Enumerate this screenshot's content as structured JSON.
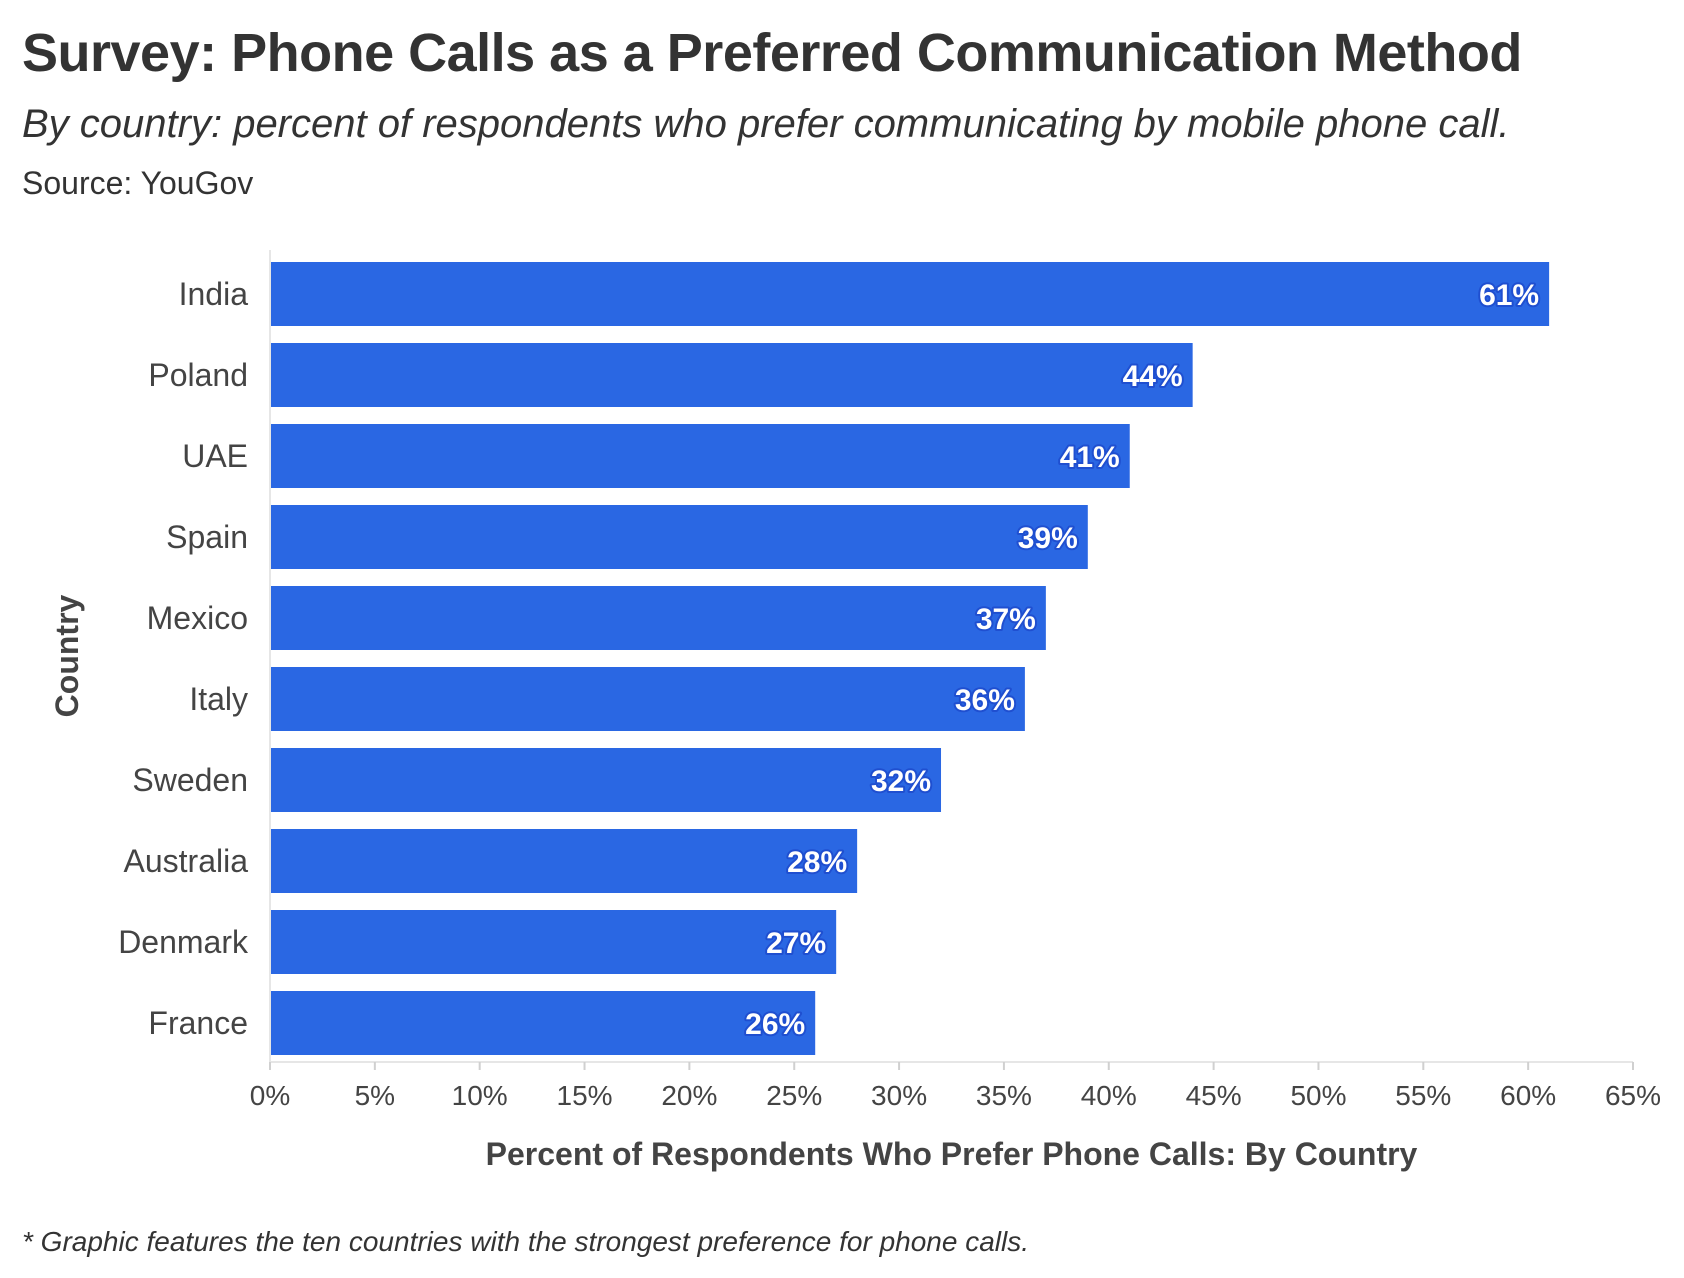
{
  "title": "Survey: Phone Calls as a Preferred Communication Method",
  "subtitle": "By country: percent of respondents who prefer communicating by mobile phone call.",
  "source": "Source: YouGov",
  "footnote": "* Graphic features the ten countries with the strongest preference for phone calls.",
  "chart_data": {
    "type": "bar",
    "orientation": "horizontal",
    "categories": [
      "India",
      "Poland",
      "UAE",
      "Spain",
      "Mexico",
      "Italy",
      "Sweden",
      "Australia",
      "Denmark",
      "France"
    ],
    "values": [
      61,
      44,
      41,
      39,
      37,
      36,
      32,
      28,
      27,
      26
    ],
    "value_labels": [
      "61%",
      "44%",
      "41%",
      "39%",
      "37%",
      "36%",
      "32%",
      "28%",
      "27%",
      "26%"
    ],
    "xlabel": "Percent of Respondents Who Prefer Phone Calls: By Country",
    "ylabel": "Country",
    "xlim": [
      0,
      65
    ],
    "xticks": [
      0,
      5,
      10,
      15,
      20,
      25,
      30,
      35,
      40,
      45,
      50,
      55,
      60,
      65
    ],
    "xtick_labels": [
      "0%",
      "5%",
      "10%",
      "15%",
      "20%",
      "25%",
      "30%",
      "35%",
      "40%",
      "45%",
      "50%",
      "55%",
      "60%",
      "65%"
    ],
    "grid": false,
    "legend": "none",
    "bar_color": "#2a67e3"
  }
}
